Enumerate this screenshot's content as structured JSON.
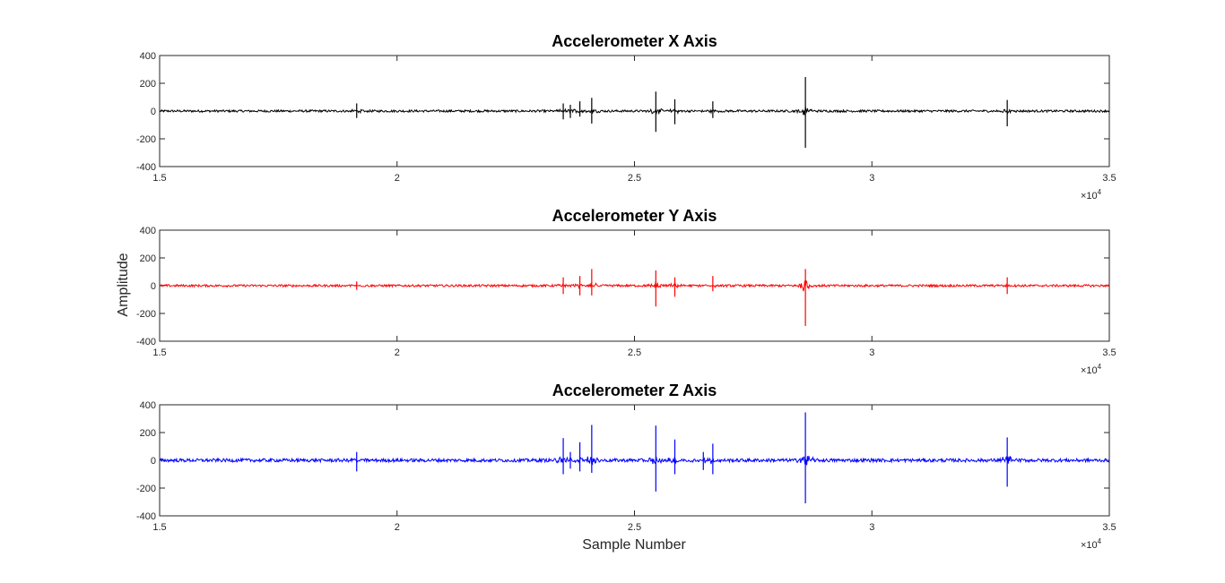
{
  "figure": {
    "ylabel": "Amplitude",
    "xlabel": "Sample Number",
    "x_multiplier_base": "×10",
    "x_multiplier_exponent": "4"
  },
  "chart_data": [
    {
      "type": "line",
      "title": "Accelerometer X Axis",
      "color": "#000000",
      "xlim": [
        1.5,
        3.5
      ],
      "ylim": [
        -400,
        400
      ],
      "xticks": [
        1.5,
        2,
        2.5,
        3,
        3.5
      ],
      "xtick_labels": [
        "1.5",
        "2",
        "2.5",
        "3",
        "3.5"
      ],
      "yticks": [
        -400,
        -200,
        0,
        200,
        400
      ],
      "ytick_labels": [
        "-400",
        "-200",
        "0",
        "200",
        "400"
      ],
      "grid": false,
      "noise_amplitude": 8,
      "spikes": [
        {
          "x": 1.915,
          "min": -50,
          "max": 55
        },
        {
          "x": 2.35,
          "min": -60,
          "max": 55
        },
        {
          "x": 2.365,
          "min": -50,
          "max": 45
        },
        {
          "x": 2.385,
          "min": -40,
          "max": 70
        },
        {
          "x": 2.41,
          "min": -90,
          "max": 95
        },
        {
          "x": 2.545,
          "min": -150,
          "max": 140
        },
        {
          "x": 2.585,
          "min": -95,
          "max": 85
        },
        {
          "x": 2.665,
          "min": -50,
          "max": 70
        },
        {
          "x": 2.86,
          "min": -265,
          "max": 245
        },
        {
          "x": 3.285,
          "min": -110,
          "max": 80
        }
      ]
    },
    {
      "type": "line",
      "title": "Accelerometer Y Axis",
      "color": "#ff0000",
      "xlim": [
        1.5,
        3.5
      ],
      "ylim": [
        -400,
        400
      ],
      "xticks": [
        1.5,
        2,
        2.5,
        3,
        3.5
      ],
      "xtick_labels": [
        "1.5",
        "2",
        "2.5",
        "3",
        "3.5"
      ],
      "yticks": [
        -400,
        -200,
        0,
        200,
        400
      ],
      "ytick_labels": [
        "-400",
        "-200",
        "0",
        "200",
        "400"
      ],
      "grid": false,
      "noise_amplitude": 8,
      "spikes": [
        {
          "x": 1.915,
          "min": -30,
          "max": 30
        },
        {
          "x": 2.35,
          "min": -60,
          "max": 60
        },
        {
          "x": 2.385,
          "min": -70,
          "max": 70
        },
        {
          "x": 2.41,
          "min": -70,
          "max": 120
        },
        {
          "x": 2.545,
          "min": -150,
          "max": 110
        },
        {
          "x": 2.585,
          "min": -80,
          "max": 60
        },
        {
          "x": 2.665,
          "min": -40,
          "max": 70
        },
        {
          "x": 2.86,
          "min": -290,
          "max": 120
        },
        {
          "x": 3.285,
          "min": -60,
          "max": 60
        }
      ]
    },
    {
      "type": "line",
      "title": "Accelerometer Z Axis",
      "color": "#0000ff",
      "xlim": [
        1.5,
        3.5
      ],
      "ylim": [
        -400,
        400
      ],
      "xticks": [
        1.5,
        2,
        2.5,
        3,
        3.5
      ],
      "xtick_labels": [
        "1.5",
        "2",
        "2.5",
        "3",
        "3.5"
      ],
      "yticks": [
        -400,
        -200,
        0,
        200,
        400
      ],
      "ytick_labels": [
        "-400",
        "-200",
        "0",
        "200",
        "400"
      ],
      "grid": false,
      "noise_amplitude": 12,
      "spikes": [
        {
          "x": 1.915,
          "min": -80,
          "max": 60
        },
        {
          "x": 2.35,
          "min": -100,
          "max": 160
        },
        {
          "x": 2.365,
          "min": -60,
          "max": 60
        },
        {
          "x": 2.385,
          "min": -80,
          "max": 130
        },
        {
          "x": 2.41,
          "min": -90,
          "max": 255
        },
        {
          "x": 2.545,
          "min": -225,
          "max": 250
        },
        {
          "x": 2.585,
          "min": -100,
          "max": 150
        },
        {
          "x": 2.645,
          "min": -70,
          "max": 60
        },
        {
          "x": 2.665,
          "min": -100,
          "max": 120
        },
        {
          "x": 2.86,
          "min": -310,
          "max": 345
        },
        {
          "x": 3.285,
          "min": -190,
          "max": 165
        }
      ]
    }
  ]
}
